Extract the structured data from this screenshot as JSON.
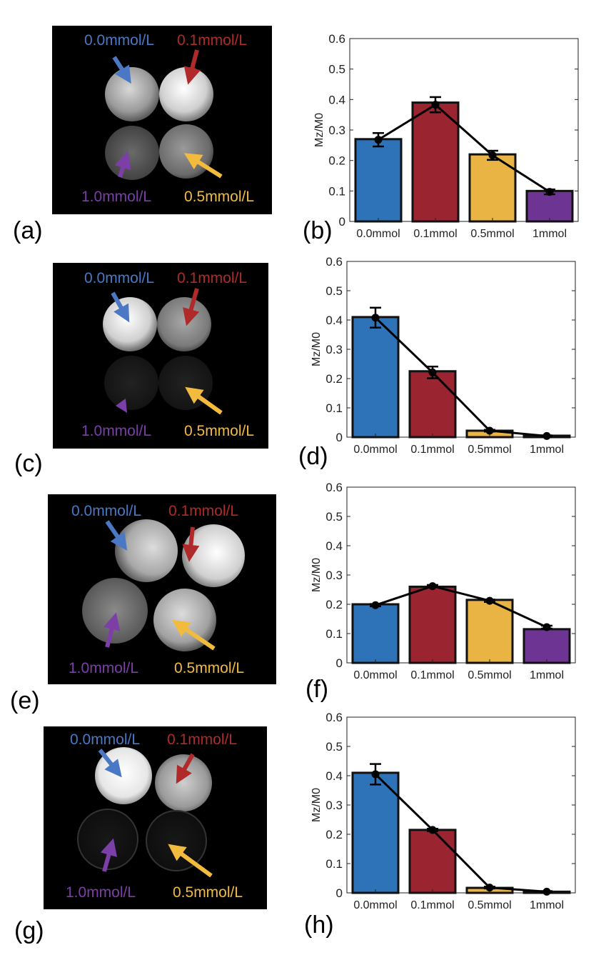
{
  "colors": {
    "blue": "#2E72B8",
    "red": "#9A2430",
    "yellow": "#E9B443",
    "purple": "#6E3493",
    "label_blue": "#4A78C4",
    "label_red": "#B02A2A",
    "label_purple": "#7C3FA8",
    "label_yellow": "#F2BB3E"
  },
  "concentration_labels": {
    "c0": "0.0mmol/L",
    "c1": "0.1mmol/L",
    "c10": "1.0mmol/L",
    "c5": "0.5mmol/L"
  },
  "panel_letters": [
    "(a)",
    "(b)",
    "(c)",
    "(d)",
    "(e)",
    "(f)",
    "(g)",
    "(h)"
  ],
  "chart_data": [
    {
      "type": "bar",
      "panel": "(b)",
      "categories": [
        "0.0mmol",
        "0.1mmol",
        "0.5mmol",
        "1mmol"
      ],
      "values": [
        0.27,
        0.39,
        0.22,
        0.1
      ],
      "line_values": [
        0.268,
        0.383,
        0.217,
        0.097
      ],
      "error": [
        0.022,
        0.025,
        0.015,
        0.008
      ],
      "ylabel": "Mz/M0",
      "ylim": [
        0,
        0.6
      ],
      "yticks": [
        "0",
        "0.1",
        "0.2",
        "0.3",
        "0.4",
        "0.5",
        "0.6"
      ]
    },
    {
      "type": "bar",
      "panel": "(d)",
      "categories": [
        "0.0mmol",
        "0.1mmol",
        "0.5mmol",
        "1mmol"
      ],
      "values": [
        0.41,
        0.225,
        0.022,
        0.005
      ],
      "line_values": [
        0.408,
        0.221,
        0.022,
        0.004
      ],
      "error": [
        0.034,
        0.02,
        0.003,
        0.002
      ],
      "ylabel": "Mz/M0",
      "ylim": [
        0,
        0.6
      ],
      "yticks": [
        "0",
        "0.1",
        "0.2",
        "0.3",
        "0.4",
        "0.5",
        "0.6"
      ]
    },
    {
      "type": "bar",
      "panel": "(f)",
      "categories": [
        "0.0mmol",
        "0.1mmol",
        "0.5mmol",
        "1mmol"
      ],
      "values": [
        0.2,
        0.26,
        0.215,
        0.115
      ],
      "line_values": [
        0.197,
        0.262,
        0.212,
        0.122
      ],
      "error": [
        0.004,
        0.004,
        0.004,
        0.005
      ],
      "ylabel": "Mz/M0",
      "ylim": [
        0,
        0.6
      ],
      "yticks": [
        "0",
        "0.1",
        "0.2",
        "0.3",
        "0.4",
        "0.5",
        "0.6"
      ]
    },
    {
      "type": "bar",
      "panel": "(h)",
      "categories": [
        "0.0mmol",
        "0.1mmol",
        "0.5mmol",
        "1mmol"
      ],
      "values": [
        0.41,
        0.215,
        0.017,
        0.004
      ],
      "line_values": [
        0.405,
        0.215,
        0.018,
        0.004
      ],
      "error": [
        0.035,
        0.004,
        0.003,
        0.002
      ],
      "ylabel": "Mz/M0",
      "ylim": [
        0,
        0.6
      ],
      "yticks": [
        "0",
        "0.1",
        "0.2",
        "0.3",
        "0.4",
        "0.5",
        "0.6"
      ]
    }
  ]
}
